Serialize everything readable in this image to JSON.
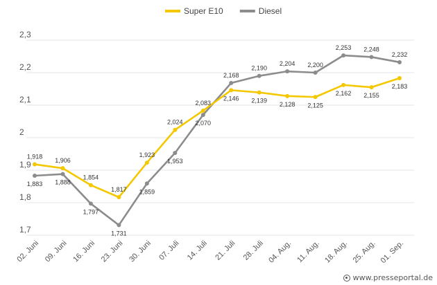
{
  "chart_data": {
    "type": "line",
    "categories": [
      "02. Juni",
      "09. Juni",
      "16. Juni",
      "23. Juni",
      "30. Juni",
      "07. Juli",
      "14. Juli",
      "21. Juli",
      "28. Juli",
      "04. Aug.",
      "11. Aug.",
      "18. Aug.",
      "25. Aug.",
      "01. Sep."
    ],
    "series": [
      {
        "name": "Super E10",
        "color": "#f4c800",
        "values": [
          1.918,
          1.906,
          1.854,
          1.817,
          1.923,
          2.024,
          2.083,
          2.146,
          2.139,
          2.128,
          2.125,
          2.162,
          2.155,
          2.183
        ],
        "labels": [
          "1,918",
          "1,906",
          "1,854",
          "1,817",
          "1,923",
          "2,024",
          "2,083",
          "2,146",
          "2,139",
          "2,128",
          "2,125",
          "2,162",
          "2,155",
          "2,183"
        ]
      },
      {
        "name": "Diesel",
        "color": "#8c8c8c",
        "values": [
          1.883,
          1.888,
          1.797,
          1.731,
          1.859,
          1.953,
          2.07,
          2.168,
          2.19,
          2.204,
          2.2,
          2.253,
          2.248,
          2.232
        ],
        "labels": [
          "1,883",
          "1,888",
          "1,797",
          "1,731",
          "1,859",
          "1,953",
          "2,070",
          "2,168",
          "2,190",
          "2,204",
          "2,200",
          "2,253",
          "2,248",
          "2,232"
        ]
      }
    ],
    "yticks": [
      1.7,
      1.8,
      1.9,
      2.0,
      2.1,
      2.2,
      2.3
    ],
    "ytick_labels": [
      "1,7",
      "1,8",
      "1,9",
      "2",
      "2,1",
      "2,2",
      "2,3"
    ],
    "ylim": [
      1.7,
      2.3
    ],
    "grid": true,
    "legend_position": "top-center"
  },
  "credit": {
    "text": "www.presseportal.de",
    "icon": "presseportal-icon"
  }
}
